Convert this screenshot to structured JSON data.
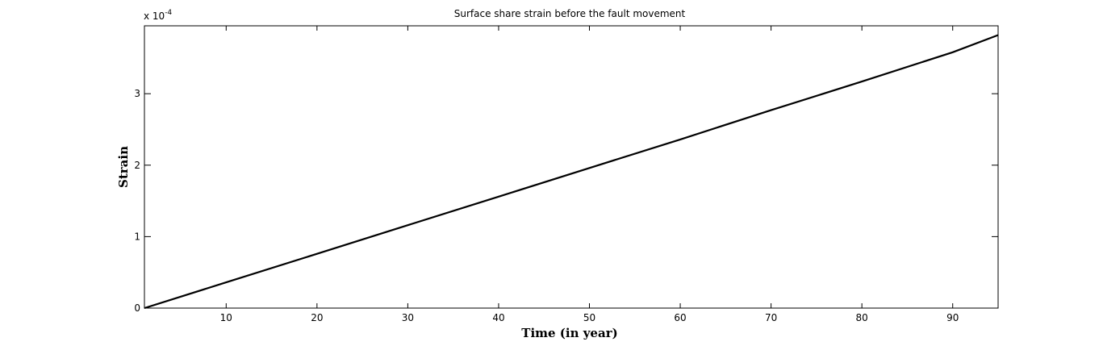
{
  "chart_data": {
    "type": "line",
    "title": "Surface share strain before the fault movement",
    "xlabel": "Time (in year)",
    "ylabel": "Strain",
    "y_multiplier": "x 10",
    "y_multiplier_exponent": "-4",
    "xlim": [
      1,
      95
    ],
    "ylim": [
      0,
      3.95
    ],
    "xticks": [
      10,
      20,
      30,
      40,
      50,
      60,
      70,
      80,
      90
    ],
    "xtick_labels": [
      "10",
      "20",
      "30",
      "40",
      "50",
      "60",
      "70",
      "80",
      "90"
    ],
    "yticks": [
      0,
      1,
      2,
      3
    ],
    "ytick_labels": [
      "0",
      "1",
      "2",
      "3"
    ],
    "grid": false,
    "legend": "none",
    "line_color": "#000000",
    "series": [
      {
        "x": [
          1,
          10,
          20,
          30,
          40,
          50,
          60,
          70,
          80,
          90,
          95
        ],
        "values": [
          0.0,
          0.36,
          0.76,
          1.16,
          1.56,
          1.96,
          2.36,
          2.77,
          3.17,
          3.58,
          3.82
        ]
      }
    ]
  }
}
